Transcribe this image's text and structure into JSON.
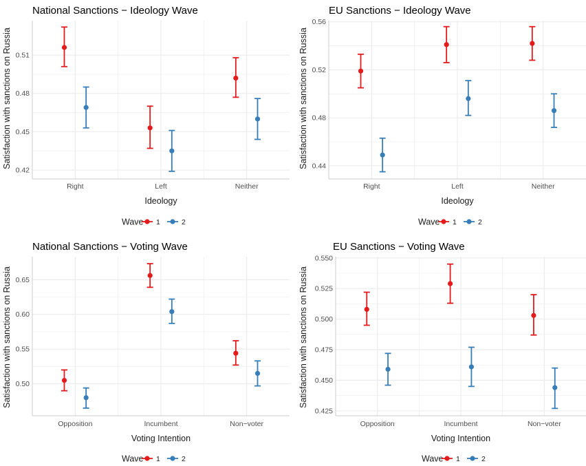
{
  "colors": {
    "wave1": "#E41A1C",
    "wave2": "#377EB8",
    "grid": "#EBEBEB",
    "axis_text": "#4D4D4D",
    "text": "#1A1A1A"
  },
  "chart_data": [
    {
      "type": "errorbar",
      "title": "National Sanctions − Ideology Wave",
      "xlabel": "Ideology",
      "ylabel": "Satisfaction with sanctions on Russia",
      "categories": [
        "Right",
        "Left",
        "Neither"
      ],
      "ylim": [
        0.413,
        0.537
      ],
      "yticks": [
        0.42,
        0.45,
        0.48,
        0.51
      ],
      "ytick_labels": [
        "0.42",
        "0.45",
        "0.48",
        "0.51"
      ],
      "legend": {
        "title": "Wave",
        "position": "bottom",
        "entries": [
          "1",
          "2"
        ]
      },
      "grid": true,
      "series": [
        {
          "name": "1",
          "values": [
            0.516,
            0.453,
            0.492
          ],
          "lower": [
            0.501,
            0.437,
            0.477
          ],
          "upper": [
            0.532,
            0.47,
            0.508
          ]
        },
        {
          "name": "2",
          "values": [
            0.469,
            0.435,
            0.46
          ],
          "lower": [
            0.453,
            0.419,
            0.444
          ],
          "upper": [
            0.485,
            0.451,
            0.476
          ]
        }
      ]
    },
    {
      "type": "errorbar",
      "title": "EU Sanctions − Ideology Wave",
      "xlabel": "Ideology",
      "ylabel": "Satisfaction with sanctions on Russia",
      "categories": [
        "Right",
        "Left",
        "Neither"
      ],
      "ylim": [
        0.429,
        0.561
      ],
      "yticks": [
        0.44,
        0.48,
        0.52,
        0.56
      ],
      "ytick_labels": [
        "0.44",
        "0.48",
        "0.52",
        "0.56"
      ],
      "legend": {
        "title": "Wave",
        "position": "bottom",
        "entries": [
          "1",
          "2"
        ]
      },
      "grid": true,
      "series": [
        {
          "name": "1",
          "values": [
            0.519,
            0.541,
            0.542
          ],
          "lower": [
            0.505,
            0.526,
            0.528
          ],
          "upper": [
            0.533,
            0.556,
            0.556
          ]
        },
        {
          "name": "2",
          "values": [
            0.449,
            0.496,
            0.486
          ],
          "lower": [
            0.435,
            0.482,
            0.472
          ],
          "upper": [
            0.463,
            0.511,
            0.5
          ]
        }
      ]
    },
    {
      "type": "errorbar",
      "title": "National Sanctions − Voting Wave",
      "xlabel": "Voting Intention",
      "ylabel": "Satisfaction with sanctions on Russia",
      "categories": [
        "Opposition",
        "Incumbent",
        "Non−voter"
      ],
      "ylim": [
        0.454,
        0.683
      ],
      "yticks": [
        0.5,
        0.55,
        0.6,
        0.65
      ],
      "ytick_labels": [
        "0.50",
        "0.55",
        "0.60",
        "0.65"
      ],
      "legend": {
        "title": "Wave",
        "position": "bottom",
        "entries": [
          "1",
          "2"
        ]
      },
      "grid": true,
      "series": [
        {
          "name": "1",
          "values": [
            0.505,
            0.656,
            0.544
          ],
          "lower": [
            0.49,
            0.639,
            0.527
          ],
          "upper": [
            0.52,
            0.673,
            0.562
          ]
        },
        {
          "name": "2",
          "values": [
            0.48,
            0.604,
            0.515
          ],
          "lower": [
            0.465,
            0.587,
            0.497
          ],
          "upper": [
            0.494,
            0.622,
            0.533
          ]
        }
      ]
    },
    {
      "type": "errorbar",
      "title": "EU Sanctions − Voting Wave",
      "xlabel": "Voting Intention",
      "ylabel": "Satisfaction with sanctions on Russia",
      "categories": [
        "Opposition",
        "Incumbent",
        "Non−voter"
      ],
      "ylim": [
        0.421,
        0.551
      ],
      "yticks": [
        0.425,
        0.45,
        0.475,
        0.5,
        0.525,
        0.55
      ],
      "ytick_labels": [
        "0.425",
        "0.450",
        "0.475",
        "0.500",
        "0.525",
        "0.550"
      ],
      "legend": {
        "title": "Wave",
        "position": "bottom",
        "entries": [
          "1",
          "2"
        ]
      },
      "grid": true,
      "series": [
        {
          "name": "1",
          "values": [
            0.508,
            0.529,
            0.503
          ],
          "lower": [
            0.495,
            0.513,
            0.487
          ],
          "upper": [
            0.522,
            0.545,
            0.52
          ]
        },
        {
          "name": "2",
          "values": [
            0.459,
            0.461,
            0.444
          ],
          "lower": [
            0.446,
            0.445,
            0.427
          ],
          "upper": [
            0.472,
            0.477,
            0.46
          ]
        }
      ]
    }
  ]
}
